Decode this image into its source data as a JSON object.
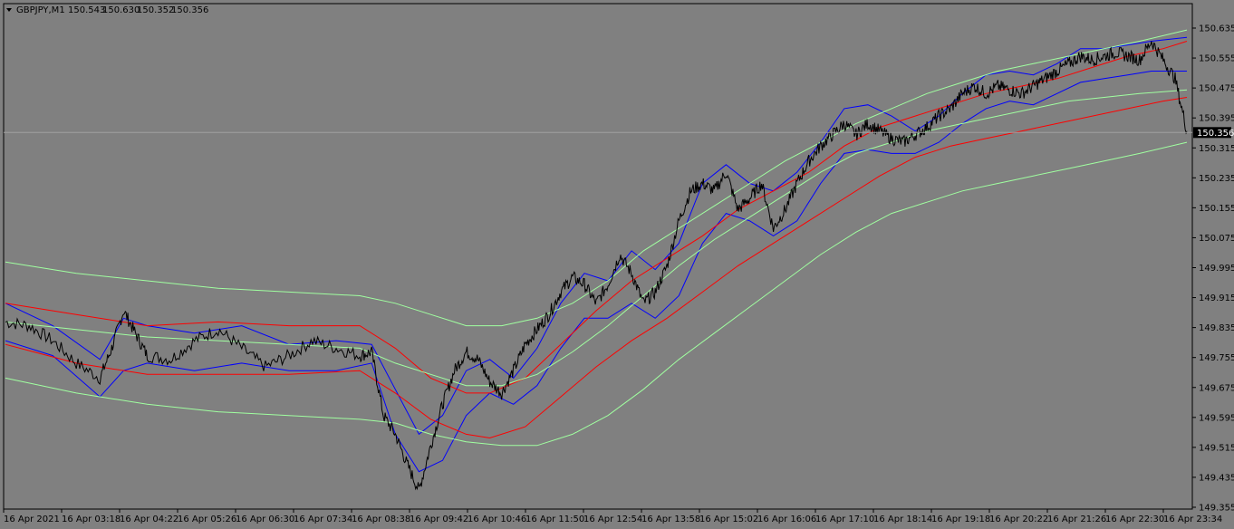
{
  "header": {
    "symbol": "GBPJPY,M1",
    "open": "150.543",
    "high": "150.630",
    "low": "150.352",
    "close": "150.356"
  },
  "current_price": "150.356",
  "colors": {
    "background": "#808080",
    "axis": "#000000",
    "candles": "#000000",
    "band_blue": "#0000ff",
    "band_red": "#ff0000",
    "band_green": "#a0ffa0",
    "price_tag_bg": "#000000",
    "price_tag_text": "#ffffff",
    "price_line": "#a0a0a0"
  },
  "chart_data": {
    "type": "line",
    "title": "GBPJPY,M1",
    "y_ticks": [
      "150.635",
      "150.555",
      "150.475",
      "150.395",
      "150.315",
      "150.235",
      "150.155",
      "150.075",
      "149.995",
      "149.915",
      "149.835",
      "149.755",
      "149.675",
      "149.595",
      "149.515",
      "149.435",
      "149.355"
    ],
    "x_ticks": [
      "16 Apr 2021",
      "16 Apr 03:18",
      "16 Apr 04:22",
      "16 Apr 05:26",
      "16 Apr 06:30",
      "16 Apr 07:34",
      "16 Apr 08:38",
      "16 Apr 09:42",
      "16 Apr 10:46",
      "16 Apr 11:50",
      "16 Apr 12:54",
      "16 Apr 13:58",
      "16 Apr 15:02",
      "16 Apr 16:06",
      "16 Apr 17:10",
      "16 Apr 18:14",
      "16 Apr 19:18",
      "16 Apr 20:22",
      "16 Apr 21:26",
      "16 Apr 22:30",
      "16 Apr 23:34"
    ],
    "ylim": [
      149.355,
      150.635
    ],
    "x_index_range": [
      0,
      100
    ],
    "price_path": [
      [
        0,
        149.85
      ],
      [
        2,
        149.84
      ],
      [
        4,
        149.8
      ],
      [
        6,
        149.74
      ],
      [
        8,
        149.7
      ],
      [
        9,
        149.78
      ],
      [
        10,
        149.88
      ],
      [
        11,
        149.82
      ],
      [
        12,
        149.76
      ],
      [
        14,
        149.75
      ],
      [
        16,
        149.8
      ],
      [
        18,
        149.83
      ],
      [
        20,
        149.78
      ],
      [
        22,
        149.73
      ],
      [
        24,
        149.76
      ],
      [
        26,
        149.8
      ],
      [
        28,
        149.78
      ],
      [
        30,
        149.76
      ],
      [
        31,
        149.77
      ],
      [
        32,
        149.6
      ],
      [
        33,
        149.55
      ],
      [
        34,
        149.47
      ],
      [
        35,
        149.4
      ],
      [
        36,
        149.52
      ],
      [
        37,
        149.63
      ],
      [
        38,
        149.72
      ],
      [
        39,
        149.77
      ],
      [
        40,
        149.75
      ],
      [
        41,
        149.69
      ],
      [
        42,
        149.66
      ],
      [
        43,
        149.72
      ],
      [
        44,
        149.79
      ],
      [
        45,
        149.83
      ],
      [
        46,
        149.87
      ],
      [
        47,
        149.93
      ],
      [
        48,
        149.97
      ],
      [
        49,
        149.95
      ],
      [
        50,
        149.9
      ],
      [
        51,
        149.95
      ],
      [
        52,
        150.03
      ],
      [
        53,
        149.98
      ],
      [
        54,
        149.9
      ],
      [
        55,
        149.93
      ],
      [
        56,
        150.0
      ],
      [
        57,
        150.12
      ],
      [
        58,
        150.2
      ],
      [
        59,
        150.22
      ],
      [
        60,
        150.2
      ],
      [
        61,
        150.25
      ],
      [
        62,
        150.15
      ],
      [
        63,
        150.18
      ],
      [
        64,
        150.22
      ],
      [
        65,
        150.1
      ],
      [
        66,
        150.15
      ],
      [
        67,
        150.22
      ],
      [
        68,
        150.28
      ],
      [
        69,
        150.32
      ],
      [
        70,
        150.35
      ],
      [
        71,
        150.38
      ],
      [
        72,
        150.35
      ],
      [
        73,
        150.38
      ],
      [
        74,
        150.36
      ],
      [
        75,
        150.34
      ],
      [
        76,
        150.33
      ],
      [
        77,
        150.35
      ],
      [
        78,
        150.37
      ],
      [
        79,
        150.4
      ],
      [
        80,
        150.42
      ],
      [
        81,
        150.46
      ],
      [
        82,
        150.48
      ],
      [
        83,
        150.46
      ],
      [
        84,
        150.48
      ],
      [
        85,
        150.47
      ],
      [
        86,
        150.46
      ],
      [
        87,
        150.48
      ],
      [
        88,
        150.5
      ],
      [
        89,
        150.52
      ],
      [
        90,
        150.54
      ],
      [
        91,
        150.56
      ],
      [
        92,
        150.55
      ],
      [
        93,
        150.56
      ],
      [
        94,
        150.57
      ],
      [
        95,
        150.56
      ],
      [
        96,
        150.55
      ],
      [
        97,
        150.6
      ],
      [
        98,
        150.55
      ],
      [
        99,
        150.5
      ],
      [
        100,
        150.36
      ]
    ],
    "series": [
      {
        "color": "#0000ff",
        "points": [
          [
            0,
            149.9
          ],
          [
            4,
            149.84
          ],
          [
            8,
            149.75
          ],
          [
            10,
            149.86
          ],
          [
            12,
            149.84
          ],
          [
            16,
            149.82
          ],
          [
            20,
            149.84
          ],
          [
            24,
            149.79
          ],
          [
            28,
            149.8
          ],
          [
            31,
            149.79
          ],
          [
            33,
            149.67
          ],
          [
            35,
            149.55
          ],
          [
            37,
            149.6
          ],
          [
            39,
            149.72
          ],
          [
            41,
            149.75
          ],
          [
            43,
            149.7
          ],
          [
            45,
            149.78
          ],
          [
            47,
            149.9
          ],
          [
            49,
            149.98
          ],
          [
            51,
            149.96
          ],
          [
            53,
            150.04
          ],
          [
            55,
            149.99
          ],
          [
            57,
            150.06
          ],
          [
            59,
            150.22
          ],
          [
            61,
            150.27
          ],
          [
            63,
            150.22
          ],
          [
            65,
            150.2
          ],
          [
            67,
            150.25
          ],
          [
            69,
            150.33
          ],
          [
            71,
            150.42
          ],
          [
            73,
            150.43
          ],
          [
            75,
            150.4
          ],
          [
            77,
            150.36
          ],
          [
            79,
            150.4
          ],
          [
            81,
            150.46
          ],
          [
            83,
            150.51
          ],
          [
            85,
            150.52
          ],
          [
            87,
            150.51
          ],
          [
            89,
            150.54
          ],
          [
            91,
            150.58
          ],
          [
            93,
            150.58
          ],
          [
            95,
            150.59
          ],
          [
            97,
            150.6
          ],
          [
            100,
            150.61
          ]
        ]
      },
      {
        "color": "#0000ff",
        "points": [
          [
            0,
            149.8
          ],
          [
            4,
            149.76
          ],
          [
            8,
            149.65
          ],
          [
            10,
            149.72
          ],
          [
            12,
            149.74
          ],
          [
            16,
            149.72
          ],
          [
            20,
            149.74
          ],
          [
            24,
            149.72
          ],
          [
            28,
            149.72
          ],
          [
            31,
            149.74
          ],
          [
            33,
            149.55
          ],
          [
            35,
            149.45
          ],
          [
            37,
            149.48
          ],
          [
            39,
            149.6
          ],
          [
            41,
            149.66
          ],
          [
            43,
            149.63
          ],
          [
            45,
            149.68
          ],
          [
            47,
            149.78
          ],
          [
            49,
            149.86
          ],
          [
            51,
            149.86
          ],
          [
            53,
            149.9
          ],
          [
            55,
            149.86
          ],
          [
            57,
            149.92
          ],
          [
            59,
            150.06
          ],
          [
            61,
            150.14
          ],
          [
            63,
            150.12
          ],
          [
            65,
            150.08
          ],
          [
            67,
            150.12
          ],
          [
            69,
            150.22
          ],
          [
            71,
            150.3
          ],
          [
            73,
            150.31
          ],
          [
            75,
            150.3
          ],
          [
            77,
            150.3
          ],
          [
            79,
            150.33
          ],
          [
            81,
            150.38
          ],
          [
            83,
            150.42
          ],
          [
            85,
            150.44
          ],
          [
            87,
            150.43
          ],
          [
            89,
            150.46
          ],
          [
            91,
            150.49
          ],
          [
            93,
            150.5
          ],
          [
            95,
            150.51
          ],
          [
            97,
            150.52
          ],
          [
            100,
            150.52
          ]
        ]
      },
      {
        "color": "#ff0000",
        "points": [
          [
            0,
            149.9
          ],
          [
            6,
            149.87
          ],
          [
            12,
            149.84
          ],
          [
            18,
            149.85
          ],
          [
            24,
            149.84
          ],
          [
            30,
            149.84
          ],
          [
            33,
            149.78
          ],
          [
            36,
            149.7
          ],
          [
            39,
            149.66
          ],
          [
            41,
            149.66
          ],
          [
            44,
            149.7
          ],
          [
            47,
            149.79
          ],
          [
            50,
            149.88
          ],
          [
            53,
            149.96
          ],
          [
            56,
            150.02
          ],
          [
            59,
            150.08
          ],
          [
            62,
            150.15
          ],
          [
            65,
            150.2
          ],
          [
            68,
            150.25
          ],
          [
            71,
            150.32
          ],
          [
            74,
            150.37
          ],
          [
            77,
            150.4
          ],
          [
            80,
            150.43
          ],
          [
            83,
            150.46
          ],
          [
            86,
            150.48
          ],
          [
            89,
            150.5
          ],
          [
            92,
            150.53
          ],
          [
            95,
            150.56
          ],
          [
            98,
            150.58
          ],
          [
            100,
            150.6
          ]
        ]
      },
      {
        "color": "#ff0000",
        "points": [
          [
            0,
            149.79
          ],
          [
            6,
            149.74
          ],
          [
            12,
            149.71
          ],
          [
            18,
            149.71
          ],
          [
            24,
            149.71
          ],
          [
            30,
            149.72
          ],
          [
            33,
            149.66
          ],
          [
            36,
            149.59
          ],
          [
            39,
            149.55
          ],
          [
            41,
            149.54
          ],
          [
            44,
            149.57
          ],
          [
            47,
            149.65
          ],
          [
            50,
            149.73
          ],
          [
            53,
            149.8
          ],
          [
            56,
            149.86
          ],
          [
            59,
            149.93
          ],
          [
            62,
            150.0
          ],
          [
            65,
            150.06
          ],
          [
            68,
            150.12
          ],
          [
            71,
            150.18
          ],
          [
            74,
            150.24
          ],
          [
            77,
            150.29
          ],
          [
            80,
            150.32
          ],
          [
            83,
            150.34
          ],
          [
            86,
            150.36
          ],
          [
            89,
            150.38
          ],
          [
            92,
            150.4
          ],
          [
            95,
            150.42
          ],
          [
            98,
            150.44
          ],
          [
            100,
            150.45
          ]
        ]
      },
      {
        "color": "#a0ffa0",
        "points": [
          [
            0,
            150.01
          ],
          [
            6,
            149.98
          ],
          [
            12,
            149.96
          ],
          [
            18,
            149.94
          ],
          [
            24,
            149.93
          ],
          [
            30,
            149.92
          ],
          [
            33,
            149.9
          ],
          [
            36,
            149.87
          ],
          [
            39,
            149.84
          ],
          [
            42,
            149.84
          ],
          [
            45,
            149.86
          ],
          [
            48,
            149.9
          ],
          [
            51,
            149.96
          ],
          [
            54,
            150.04
          ],
          [
            57,
            150.1
          ],
          [
            60,
            150.16
          ],
          [
            63,
            150.22
          ],
          [
            66,
            150.28
          ],
          [
            69,
            150.33
          ],
          [
            72,
            150.38
          ],
          [
            75,
            150.42
          ],
          [
            78,
            150.46
          ],
          [
            81,
            150.49
          ],
          [
            84,
            150.52
          ],
          [
            87,
            150.54
          ],
          [
            90,
            150.56
          ],
          [
            93,
            150.58
          ],
          [
            96,
            150.6
          ],
          [
            100,
            150.63
          ]
        ]
      },
      {
        "color": "#a0ffa0",
        "points": [
          [
            0,
            149.85
          ],
          [
            6,
            149.83
          ],
          [
            12,
            149.81
          ],
          [
            18,
            149.8
          ],
          [
            24,
            149.79
          ],
          [
            30,
            149.78
          ],
          [
            33,
            149.74
          ],
          [
            36,
            149.71
          ],
          [
            39,
            149.68
          ],
          [
            42,
            149.68
          ],
          [
            45,
            149.71
          ],
          [
            48,
            149.77
          ],
          [
            51,
            149.84
          ],
          [
            54,
            149.92
          ],
          [
            57,
            150.0
          ],
          [
            60,
            150.07
          ],
          [
            63,
            150.13
          ],
          [
            66,
            150.19
          ],
          [
            69,
            150.25
          ],
          [
            72,
            150.3
          ],
          [
            75,
            150.33
          ],
          [
            78,
            150.36
          ],
          [
            81,
            150.38
          ],
          [
            84,
            150.4
          ],
          [
            87,
            150.42
          ],
          [
            90,
            150.44
          ],
          [
            93,
            150.45
          ],
          [
            96,
            150.46
          ],
          [
            100,
            150.47
          ]
        ]
      },
      {
        "color": "#a0ffa0",
        "points": [
          [
            0,
            149.7
          ],
          [
            6,
            149.66
          ],
          [
            12,
            149.63
          ],
          [
            18,
            149.61
          ],
          [
            24,
            149.6
          ],
          [
            30,
            149.59
          ],
          [
            33,
            149.58
          ],
          [
            36,
            149.55
          ],
          [
            39,
            149.53
          ],
          [
            42,
            149.52
          ],
          [
            45,
            149.52
          ],
          [
            48,
            149.55
          ],
          [
            51,
            149.6
          ],
          [
            54,
            149.67
          ],
          [
            57,
            149.75
          ],
          [
            60,
            149.82
          ],
          [
            63,
            149.89
          ],
          [
            66,
            149.96
          ],
          [
            69,
            150.03
          ],
          [
            72,
            150.09
          ],
          [
            75,
            150.14
          ],
          [
            78,
            150.17
          ],
          [
            81,
            150.2
          ],
          [
            84,
            150.22
          ],
          [
            87,
            150.24
          ],
          [
            90,
            150.26
          ],
          [
            93,
            150.28
          ],
          [
            96,
            150.3
          ],
          [
            100,
            150.33
          ]
        ]
      }
    ]
  }
}
